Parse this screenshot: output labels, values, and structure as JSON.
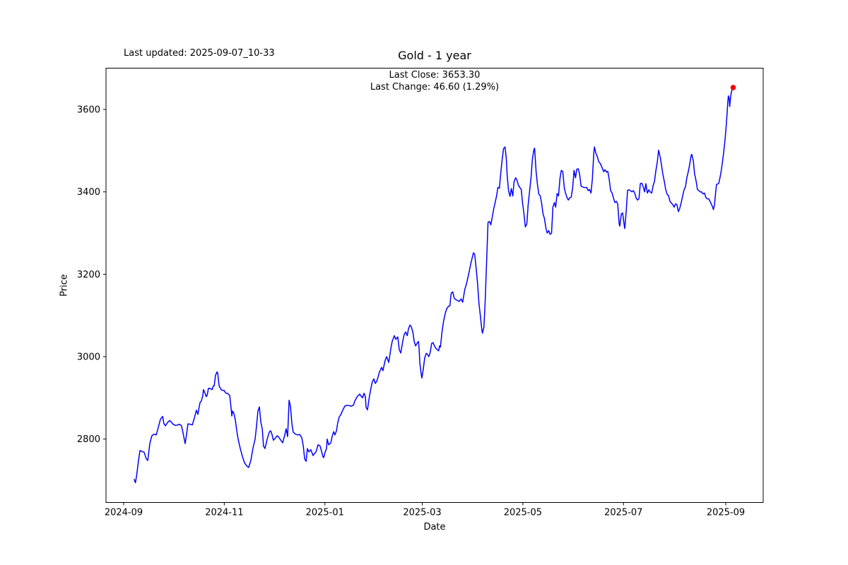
{
  "header": {
    "last_updated": "Last updated: 2025-09-07_10-33",
    "title": "Gold - 1 year"
  },
  "annotation": {
    "line1": "Last Close: 3653.30",
    "line2": "Last Change: 46.60 (1.29%)"
  },
  "colors": {
    "line": "#0000ff",
    "marker": "#ff0000",
    "axis": "#000000",
    "background": "#ffffff"
  },
  "chart_data": {
    "type": "line",
    "title": "Gold - 1 year",
    "xlabel": "Date",
    "ylabel": "Price",
    "legend": "none",
    "grid": false,
    "last_close": 3653.3,
    "last_change": 46.6,
    "last_change_pct": 1.29,
    "x_unit": "days since 2024-09-01",
    "xlim": [
      -10.7,
      387.7
    ],
    "ylim": [
      2646,
      3700.3
    ],
    "yticks": [
      2800,
      3000,
      3200,
      3400,
      3600
    ],
    "xticks": [
      {
        "d": 0,
        "label": "2024-09"
      },
      {
        "d": 61,
        "label": "2024-11"
      },
      {
        "d": 122,
        "label": "2025-01"
      },
      {
        "d": 181,
        "label": "2025-03"
      },
      {
        "d": 242,
        "label": "2025-05"
      },
      {
        "d": 303,
        "label": "2025-07"
      },
      {
        "d": 365,
        "label": "2025-09"
      }
    ],
    "points": [
      [
        6.4,
        2702
      ],
      [
        7.1,
        2694
      ],
      [
        7.9,
        2712
      ],
      [
        9,
        2748
      ],
      [
        9.9,
        2772
      ],
      [
        11.1,
        2770
      ],
      [
        12.4,
        2768
      ],
      [
        13.7,
        2752
      ],
      [
        14.6,
        2748
      ],
      [
        15.9,
        2790
      ],
      [
        17.1,
        2808
      ],
      [
        18.4,
        2812
      ],
      [
        19.7,
        2810
      ],
      [
        21,
        2828
      ],
      [
        22.3,
        2848
      ],
      [
        23.6,
        2855
      ],
      [
        24.4,
        2838
      ],
      [
        25.3,
        2832
      ],
      [
        26.6,
        2840
      ],
      [
        27.9,
        2845
      ],
      [
        28.7,
        2842
      ],
      [
        30,
        2836
      ],
      [
        31.3,
        2833
      ],
      [
        32.6,
        2834
      ],
      [
        33.9,
        2836
      ],
      [
        35.1,
        2832
      ],
      [
        36,
        2815
      ],
      [
        37.3,
        2789
      ],
      [
        38.1,
        2810
      ],
      [
        39,
        2837
      ],
      [
        40.3,
        2836
      ],
      [
        41.6,
        2834
      ],
      [
        42.8,
        2850
      ],
      [
        44.1,
        2870
      ],
      [
        45,
        2860
      ],
      [
        45.9,
        2880
      ],
      [
        46.3,
        2889
      ],
      [
        47.1,
        2892
      ],
      [
        48,
        2906
      ],
      [
        48.4,
        2920
      ],
      [
        49.3,
        2911
      ],
      [
        50.1,
        2903
      ],
      [
        50.6,
        2906
      ],
      [
        51.4,
        2923
      ],
      [
        52.3,
        2923
      ],
      [
        53.6,
        2920
      ],
      [
        54.4,
        2929
      ],
      [
        54.9,
        2929
      ],
      [
        55.7,
        2955
      ],
      [
        56.6,
        2963
      ],
      [
        57,
        2961
      ],
      [
        57.9,
        2929
      ],
      [
        58.7,
        2923
      ],
      [
        59.1,
        2920
      ],
      [
        60,
        2918
      ],
      [
        60.9,
        2918
      ],
      [
        61.3,
        2915
      ],
      [
        62.1,
        2911
      ],
      [
        63,
        2911
      ],
      [
        63.4,
        2909
      ],
      [
        64.3,
        2906
      ],
      [
        65.1,
        2877
      ],
      [
        65.6,
        2856
      ],
      [
        66,
        2868
      ],
      [
        66.9,
        2862
      ],
      [
        67.7,
        2846
      ],
      [
        68.6,
        2820
      ],
      [
        69.4,
        2800
      ],
      [
        70.7,
        2777
      ],
      [
        72,
        2758
      ],
      [
        73.3,
        2742
      ],
      [
        74.6,
        2735
      ],
      [
        75.8,
        2731
      ],
      [
        77.1,
        2748
      ],
      [
        78.4,
        2778
      ],
      [
        79.7,
        2800
      ],
      [
        80.5,
        2830
      ],
      [
        81.4,
        2868
      ],
      [
        82.3,
        2878
      ],
      [
        83.1,
        2842
      ],
      [
        84,
        2825
      ],
      [
        84.8,
        2783
      ],
      [
        85.7,
        2777
      ],
      [
        87,
        2800
      ],
      [
        88.3,
        2817
      ],
      [
        89.1,
        2820
      ],
      [
        90,
        2810
      ],
      [
        90.8,
        2797
      ],
      [
        92.1,
        2803
      ],
      [
        93,
        2808
      ],
      [
        93.8,
        2806
      ],
      [
        95.1,
        2798
      ],
      [
        96.4,
        2791
      ],
      [
        97.7,
        2810
      ],
      [
        98.5,
        2825
      ],
      [
        99.4,
        2806
      ],
      [
        100.3,
        2894
      ],
      [
        101.1,
        2880
      ],
      [
        102,
        2837
      ],
      [
        102.8,
        2817
      ],
      [
        104.1,
        2812
      ],
      [
        105.4,
        2810
      ],
      [
        106.7,
        2811
      ],
      [
        108,
        2803
      ],
      [
        108.9,
        2783
      ],
      [
        109.7,
        2752
      ],
      [
        110.6,
        2746
      ],
      [
        111.4,
        2777
      ],
      [
        112.3,
        2769
      ],
      [
        113.5,
        2774
      ],
      [
        114.8,
        2760
      ],
      [
        115.7,
        2765
      ],
      [
        116.6,
        2769
      ],
      [
        117.8,
        2786
      ],
      [
        119.1,
        2783
      ],
      [
        120,
        2770
      ],
      [
        120.8,
        2757
      ],
      [
        121.3,
        2755
      ],
      [
        122.1,
        2768
      ],
      [
        123,
        2777
      ],
      [
        123.4,
        2800
      ],
      [
        124.3,
        2786
      ],
      [
        125.1,
        2789
      ],
      [
        125.6,
        2791
      ],
      [
        126.4,
        2806
      ],
      [
        127.3,
        2818
      ],
      [
        128.1,
        2810
      ],
      [
        129,
        2820
      ],
      [
        129.8,
        2840
      ],
      [
        130.7,
        2854
      ],
      [
        131.6,
        2859
      ],
      [
        132.8,
        2870
      ],
      [
        134.1,
        2880
      ],
      [
        135.4,
        2882
      ],
      [
        136.7,
        2881
      ],
      [
        138,
        2880
      ],
      [
        139.3,
        2882
      ],
      [
        140.1,
        2892
      ],
      [
        141.4,
        2902
      ],
      [
        142.3,
        2906
      ],
      [
        143.1,
        2909
      ],
      [
        144,
        2904
      ],
      [
        144.8,
        2900
      ],
      [
        145.7,
        2911
      ],
      [
        146.5,
        2903
      ],
      [
        147,
        2877
      ],
      [
        147.8,
        2871
      ],
      [
        149.1,
        2906
      ],
      [
        150,
        2925
      ],
      [
        150.8,
        2940
      ],
      [
        151.7,
        2946
      ],
      [
        152.5,
        2935
      ],
      [
        153.4,
        2940
      ],
      [
        154.2,
        2950
      ],
      [
        155.1,
        2963
      ],
      [
        156.4,
        2974
      ],
      [
        157.2,
        2966
      ],
      [
        158.5,
        2991
      ],
      [
        159.4,
        3000
      ],
      [
        160.7,
        2986
      ],
      [
        162,
        3020
      ],
      [
        162.8,
        3037
      ],
      [
        164.1,
        3051
      ],
      [
        165,
        3042
      ],
      [
        166.2,
        3048
      ],
      [
        167.1,
        3017
      ],
      [
        168,
        3009
      ],
      [
        169.2,
        3037
      ],
      [
        170.1,
        3054
      ],
      [
        171,
        3060
      ],
      [
        171.9,
        3051
      ],
      [
        172.7,
        3068
      ],
      [
        173.6,
        3077
      ],
      [
        174.4,
        3072
      ],
      [
        175.3,
        3060
      ],
      [
        176.1,
        3037
      ],
      [
        177,
        3026
      ],
      [
        177.8,
        3032
      ],
      [
        178.7,
        3037
      ],
      [
        179.1,
        3020
      ],
      [
        179.5,
        2986
      ],
      [
        180.4,
        2957
      ],
      [
        180.8,
        2948
      ],
      [
        181.6,
        2969
      ],
      [
        182.5,
        2997
      ],
      [
        183.4,
        3008
      ],
      [
        184.2,
        3005
      ],
      [
        185,
        3000
      ],
      [
        185.9,
        3011
      ],
      [
        186.7,
        3032
      ],
      [
        187.6,
        3034
      ],
      [
        188.4,
        3026
      ],
      [
        189.3,
        3020
      ],
      [
        190.1,
        3017
      ],
      [
        191,
        3014
      ],
      [
        191.5,
        3026
      ],
      [
        192,
        3023
      ],
      [
        192.4,
        3037
      ],
      [
        193,
        3060
      ],
      [
        193.8,
        3083
      ],
      [
        194.5,
        3097
      ],
      [
        195.3,
        3110
      ],
      [
        196.1,
        3118
      ],
      [
        197,
        3122
      ],
      [
        197.8,
        3124
      ],
      [
        198.3,
        3146
      ],
      [
        198.7,
        3155
      ],
      [
        199.5,
        3157
      ],
      [
        200.4,
        3142
      ],
      [
        201.2,
        3139
      ],
      [
        202.1,
        3137
      ],
      [
        203.4,
        3134
      ],
      [
        204.6,
        3140
      ],
      [
        205.5,
        3132
      ],
      [
        206.8,
        3163
      ],
      [
        207.7,
        3175
      ],
      [
        208.5,
        3189
      ],
      [
        209.4,
        3205
      ],
      [
        210.2,
        3222
      ],
      [
        211.1,
        3237
      ],
      [
        212,
        3252
      ],
      [
        212.8,
        3249
      ],
      [
        213.7,
        3215
      ],
      [
        214.5,
        3180
      ],
      [
        215.4,
        3129
      ],
      [
        216.2,
        3100
      ],
      [
        217.1,
        3066
      ],
      [
        217.5,
        3057
      ],
      [
        218.4,
        3072
      ],
      [
        219.2,
        3140
      ],
      [
        220.1,
        3240
      ],
      [
        220.9,
        3326
      ],
      [
        221.8,
        3328
      ],
      [
        222.6,
        3320
      ],
      [
        223.5,
        3340
      ],
      [
        224.4,
        3360
      ],
      [
        225.2,
        3374
      ],
      [
        226.1,
        3391
      ],
      [
        226.9,
        3411
      ],
      [
        227.8,
        3409
      ],
      [
        228.6,
        3445
      ],
      [
        229.5,
        3480
      ],
      [
        230.3,
        3505
      ],
      [
        231.2,
        3509
      ],
      [
        232,
        3480
      ],
      [
        232.5,
        3440
      ],
      [
        233.3,
        3403
      ],
      [
        234.2,
        3389
      ],
      [
        235,
        3408
      ],
      [
        235.9,
        3390
      ],
      [
        236.7,
        3425
      ],
      [
        237.6,
        3434
      ],
      [
        238.4,
        3429
      ],
      [
        239.3,
        3416
      ],
      [
        240.1,
        3411
      ],
      [
        241,
        3406
      ],
      [
        241.8,
        3374
      ],
      [
        242.7,
        3346
      ],
      [
        243.5,
        3315
      ],
      [
        244.4,
        3322
      ],
      [
        245.2,
        3369
      ],
      [
        246.1,
        3403
      ],
      [
        247,
        3437
      ],
      [
        247.8,
        3480
      ],
      [
        248.7,
        3502
      ],
      [
        249.1,
        3506
      ],
      [
        250,
        3450
      ],
      [
        250.8,
        3420
      ],
      [
        251.7,
        3394
      ],
      [
        252.5,
        3391
      ],
      [
        253.4,
        3372
      ],
      [
        254.2,
        3347
      ],
      [
        255.1,
        3335
      ],
      [
        256,
        3311
      ],
      [
        256.8,
        3300
      ],
      [
        257.7,
        3306
      ],
      [
        258.5,
        3297
      ],
      [
        259.4,
        3300
      ],
      [
        260.2,
        3363
      ],
      [
        261.1,
        3374
      ],
      [
        261.9,
        3363
      ],
      [
        262.8,
        3396
      ],
      [
        263.6,
        3390
      ],
      [
        264.5,
        3432
      ],
      [
        265.3,
        3452
      ],
      [
        266.2,
        3449
      ],
      [
        267.1,
        3410
      ],
      [
        267.9,
        3397
      ],
      [
        268.8,
        3386
      ],
      [
        269.6,
        3380
      ],
      [
        270.5,
        3386
      ],
      [
        271.3,
        3387
      ],
      [
        272.2,
        3410
      ],
      [
        273,
        3452
      ],
      [
        273.9,
        3434
      ],
      [
        274.7,
        3455
      ],
      [
        275.6,
        3456
      ],
      [
        276.4,
        3443
      ],
      [
        277.3,
        3414
      ],
      [
        278.2,
        3412
      ],
      [
        279,
        3411
      ],
      [
        279.9,
        3410
      ],
      [
        280.7,
        3411
      ],
      [
        281.6,
        3403
      ],
      [
        282.4,
        3406
      ],
      [
        283.3,
        3397
      ],
      [
        284.1,
        3430
      ],
      [
        285,
        3495
      ],
      [
        285.4,
        3509
      ],
      [
        286.3,
        3493
      ],
      [
        287.1,
        3486
      ],
      [
        288,
        3473
      ],
      [
        288.9,
        3469
      ],
      [
        290.1,
        3458
      ],
      [
        291,
        3449
      ],
      [
        291.8,
        3454
      ],
      [
        292.7,
        3448
      ],
      [
        293.5,
        3450
      ],
      [
        294.4,
        3429
      ],
      [
        295.2,
        3403
      ],
      [
        296.1,
        3397
      ],
      [
        297,
        3384
      ],
      [
        297.8,
        3374
      ],
      [
        298.7,
        3377
      ],
      [
        299.5,
        3371
      ],
      [
        300.4,
        3322
      ],
      [
        300.8,
        3317
      ],
      [
        301.7,
        3346
      ],
      [
        302.5,
        3349
      ],
      [
        303.4,
        3320
      ],
      [
        303.8,
        3311
      ],
      [
        304.7,
        3357
      ],
      [
        305.5,
        3404
      ],
      [
        306.4,
        3405
      ],
      [
        307.2,
        3403
      ],
      [
        308.1,
        3400
      ],
      [
        309,
        3403
      ],
      [
        309.8,
        3397
      ],
      [
        310.7,
        3385
      ],
      [
        311.5,
        3380
      ],
      [
        312.4,
        3383
      ],
      [
        313.2,
        3420
      ],
      [
        314.1,
        3421
      ],
      [
        314.9,
        3413
      ],
      [
        315.8,
        3400
      ],
      [
        316.6,
        3420
      ],
      [
        317.5,
        3397
      ],
      [
        318.4,
        3405
      ],
      [
        319.2,
        3400
      ],
      [
        320.1,
        3397
      ],
      [
        320.9,
        3414
      ],
      [
        321.8,
        3426
      ],
      [
        322.6,
        3450
      ],
      [
        323.5,
        3472
      ],
      [
        324.3,
        3501
      ],
      [
        325.2,
        3486
      ],
      [
        326,
        3466
      ],
      [
        326.9,
        3442
      ],
      [
        327.7,
        3427
      ],
      [
        328.6,
        3406
      ],
      [
        329.5,
        3394
      ],
      [
        330.3,
        3391
      ],
      [
        331.2,
        3377
      ],
      [
        332,
        3373
      ],
      [
        332.9,
        3369
      ],
      [
        333.7,
        3363
      ],
      [
        334.6,
        3371
      ],
      [
        335.4,
        3369
      ],
      [
        336.3,
        3352
      ],
      [
        337.1,
        3360
      ],
      [
        338,
        3374
      ],
      [
        338.9,
        3391
      ],
      [
        339.7,
        3405
      ],
      [
        340.6,
        3413
      ],
      [
        341.4,
        3434
      ],
      [
        342.3,
        3449
      ],
      [
        343.1,
        3466
      ],
      [
        344,
        3488
      ],
      [
        344.4,
        3491
      ],
      [
        345.3,
        3477
      ],
      [
        346.1,
        3444
      ],
      [
        347,
        3427
      ],
      [
        347.8,
        3406
      ],
      [
        348.7,
        3403
      ],
      [
        349.5,
        3400
      ],
      [
        350.4,
        3400
      ],
      [
        351.2,
        3395
      ],
      [
        352.1,
        3397
      ],
      [
        353,
        3386
      ],
      [
        353.8,
        3383
      ],
      [
        354.7,
        3383
      ],
      [
        355.5,
        3377
      ],
      [
        356.4,
        3369
      ],
      [
        357.1,
        3363
      ],
      [
        357.5,
        3357
      ],
      [
        358.2,
        3369
      ],
      [
        358.8,
        3395
      ],
      [
        359.4,
        3418
      ],
      [
        360.1,
        3419
      ],
      [
        360.8,
        3421
      ],
      [
        361.5,
        3434
      ],
      [
        362.3,
        3452
      ],
      [
        363,
        3472
      ],
      [
        363.7,
        3495
      ],
      [
        364.4,
        3520
      ],
      [
        365.1,
        3550
      ],
      [
        365.8,
        3590
      ],
      [
        366.3,
        3620
      ],
      [
        366.6,
        3633
      ],
      [
        367.1,
        3627
      ],
      [
        367.4,
        3607
      ],
      [
        368,
        3633
      ],
      [
        368.6,
        3645
      ],
      [
        369.5,
        3653.3
      ]
    ]
  }
}
